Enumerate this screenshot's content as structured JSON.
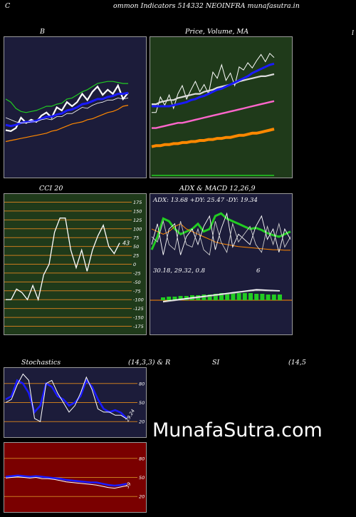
{
  "page": {
    "header": "ommon Indicators 514332 NEOINFRA munafasutra.in",
    "edge_left": "C",
    "edge_right": "l",
    "watermark": "MunafaSutra.com"
  },
  "colors": {
    "navy_bg": "#1c1c3a",
    "green_bg": "#1f3a1a",
    "red_bg": "#7a0000",
    "grid_orange": "#c87a1e",
    "blue_line": "#1a1aff",
    "green_line": "#22cc22",
    "orange_line": "#ff8800"
  },
  "chart_data": [
    {
      "type": "line",
      "title": "B",
      "series": [
        {
          "values": [
            1.3,
            1.2,
            1.5,
            2.5,
            2.0,
            2.3,
            2.1,
            2.7,
            3.0,
            2.5,
            3.5,
            3.2,
            4.0,
            3.6,
            4.0,
            4.8,
            4.2,
            5.0,
            5.5,
            4.7,
            5.2,
            4.8,
            5.6,
            4.3,
            4.9
          ]
        },
        {
          "values": [
            1.8,
            1.7,
            1.8,
            2.0,
            2.1,
            2.1,
            2.2,
            2.4,
            2.6,
            2.6,
            2.8,
            2.9,
            3.2,
            3.3,
            3.5,
            3.8,
            3.9,
            4.1,
            4.3,
            4.3,
            4.5,
            4.6,
            4.8,
            4.8,
            4.9
          ]
        },
        {
          "values": [
            2.5,
            2.3,
            2.1,
            2.0,
            2.0,
            2.1,
            2.1,
            2.3,
            2.4,
            2.3,
            2.6,
            2.6,
            2.9,
            2.9,
            3.2,
            3.5,
            3.4,
            3.7,
            3.9,
            4.0,
            4.2,
            4.2,
            4.4,
            4.3,
            4.4
          ]
        },
        {
          "values": [
            4.3,
            4.0,
            3.4,
            3.1,
            3.0,
            3.1,
            3.2,
            3.4,
            3.6,
            3.6,
            3.8,
            3.9,
            4.3,
            4.4,
            4.7,
            5.0,
            5.2,
            5.5,
            5.8,
            5.9,
            6.0,
            6.0,
            5.9,
            5.8,
            5.8
          ]
        },
        {
          "values": [
            0.2,
            0.3,
            0.4,
            0.5,
            0.6,
            0.7,
            0.8,
            0.9,
            1.0,
            1.2,
            1.3,
            1.5,
            1.7,
            1.9,
            2.0,
            2.1,
            2.3,
            2.4,
            2.6,
            2.8,
            3.0,
            3.1,
            3.3,
            3.6,
            3.7
          ]
        }
      ],
      "ylim": [
        -3,
        10
      ]
    },
    {
      "type": "line",
      "title": "Price, Volume, MA",
      "series": [
        {
          "values": [
            3.0,
            3.0,
            4.5,
            3.7,
            4.7,
            3.4,
            4.8,
            5.6,
            4.3,
            5.2,
            6.0,
            5.0,
            5.7,
            4.8,
            6.9,
            6.3,
            7.6,
            6.1,
            6.8,
            5.6,
            7.4,
            7.1,
            7.8,
            7.3,
            8.0,
            8.6,
            7.9,
            8.7,
            8.3
          ]
        },
        {
          "values": [
            3.8,
            3.8,
            4.0,
            4.1,
            4.2,
            4.2,
            4.4,
            4.5,
            4.6,
            4.7,
            4.8,
            4.8,
            5.0,
            5.1,
            5.2,
            5.4,
            5.5,
            5.6,
            5.7,
            5.8,
            6.0,
            6.1,
            6.2,
            6.3,
            6.4,
            6.5,
            6.5,
            6.6,
            6.7
          ]
        },
        {
          "values": [
            3.6,
            3.6,
            3.6,
            3.6,
            3.6,
            3.7,
            3.8,
            3.9,
            4.0,
            4.2,
            4.3,
            4.5,
            4.6,
            4.8,
            5.0,
            5.2,
            5.3,
            5.5,
            5.7,
            5.9,
            6.1,
            6.3,
            6.5,
            6.8,
            7.0,
            7.2,
            7.4,
            7.6,
            7.7
          ]
        },
        {
          "values": [
            1.5,
            1.5,
            1.6,
            1.7,
            1.8,
            1.9,
            2.0,
            2.0,
            2.1,
            2.2,
            2.3,
            2.4,
            2.5,
            2.6,
            2.7,
            2.8,
            2.9,
            3.0,
            3.1,
            3.2,
            3.3,
            3.4,
            3.5,
            3.6,
            3.7,
            3.8,
            3.9,
            4.0,
            4.1
          ]
        },
        {
          "values": [
            -0.3,
            -0.2,
            -0.2,
            -0.1,
            -0.1,
            0.0,
            0.0,
            0.1,
            0.1,
            0.2,
            0.2,
            0.3,
            0.3,
            0.4,
            0.4,
            0.5,
            0.5,
            0.6,
            0.6,
            0.7,
            0.8,
            0.8,
            0.9,
            1.0,
            1.0,
            1.1,
            1.2,
            1.3,
            1.4
          ]
        }
      ],
      "ylim": [
        -3,
        10
      ]
    },
    {
      "type": "line",
      "title": "CCI 20",
      "y_ticks": [
        175,
        150,
        125,
        100,
        75,
        50,
        25,
        0,
        -25,
        -50,
        -75,
        -100,
        -125,
        -150,
        -175
      ],
      "series": [
        {
          "values": [
            -100,
            -100,
            -70,
            -80,
            -100,
            -60,
            -100,
            -30,
            0,
            90,
            130,
            130,
            40,
            -10,
            40,
            -20,
            40,
            80,
            110,
            50,
            30,
            60
          ]
        }
      ],
      "last_label": "43",
      "ylim": [
        -190,
        190
      ]
    },
    {
      "type": "line",
      "title": "ADX & MACD 12,26,9",
      "adx_label": "ADX: 13.68  +DY: 25.47 -DY: 19.34",
      "macd_label": "30.18,  29.32,  0.8",
      "macd_extra": "6",
      "series": [
        {
          "values": [
            30,
            55,
            90,
            85,
            70,
            60,
            65,
            70,
            80,
            65,
            70,
            95,
            100,
            90,
            85,
            80,
            75,
            70,
            72,
            68,
            62,
            58,
            55,
            60,
            65
          ]
        },
        {
          "values": [
            70,
            65,
            60,
            65,
            75,
            80,
            70,
            65,
            60,
            55,
            50,
            45,
            42,
            40,
            38,
            36,
            35,
            34,
            33,
            32,
            31,
            30,
            30,
            29,
            29
          ]
        },
        {
          "values": [
            40,
            80,
            20,
            70,
            80,
            20,
            55,
            70,
            40,
            75,
            95,
            30,
            70,
            100,
            35,
            60,
            50,
            40,
            75,
            95,
            50,
            70,
            25,
            70,
            50
          ]
        },
        {
          "values": [
            55,
            45,
            85,
            40,
            30,
            85,
            40,
            35,
            70,
            30,
            20,
            85,
            45,
            25,
            80,
            45,
            60,
            75,
            40,
            25,
            75,
            40,
            80,
            35,
            55
          ]
        }
      ],
      "macd_series": [
        {
          "values": [
            2.0,
            2.5,
            3.0,
            3.5,
            4.0,
            4.5,
            5.0,
            5.5,
            6.0,
            6.5,
            7.0,
            7.5,
            8.0,
            8.5,
            9.0,
            9.5,
            10.0,
            9.8,
            9.6,
            9.4,
            9.2
          ]
        },
        {
          "values": [
            1.5,
            2.0,
            2.5,
            3.0,
            3.5,
            4.0,
            4.5,
            5.0,
            5.5,
            6.0,
            6.5,
            7.0,
            7.5,
            8.0,
            8.5,
            9.0,
            9.3,
            9.2,
            9.1,
            9.0,
            8.9
          ]
        }
      ],
      "macd_hist": [
        0.4,
        0.5,
        0.5,
        0.6,
        0.6,
        0.7,
        0.7,
        0.8,
        0.8,
        0.9,
        1.0,
        1.0,
        1.0,
        1.0,
        1.0,
        1.0,
        0.9,
        0.9,
        0.8,
        0.8,
        0.8
      ]
    },
    {
      "type": "line",
      "title": "Stochastics",
      "title_params": "(14,3,3) & R",
      "y_ticks": [
        80,
        50,
        20
      ],
      "series": [
        {
          "values": [
            55,
            60,
            85,
            80,
            65,
            35,
            45,
            80,
            75,
            60,
            55,
            45,
            50,
            60,
            85,
            75,
            55,
            40,
            35,
            38,
            34,
            25
          ]
        },
        {
          "values": [
            50,
            55,
            78,
            95,
            85,
            25,
            20,
            80,
            85,
            65,
            50,
            35,
            45,
            65,
            90,
            70,
            40,
            35,
            35,
            30,
            30,
            24
          ]
        }
      ],
      "last_label": "29.24",
      "ylim": [
        0,
        100
      ]
    },
    {
      "type": "line",
      "title": "SI",
      "title_params": "(14,5",
      "y_ticks": [
        80,
        50,
        20
      ],
      "series": [
        {
          "values": [
            51,
            52,
            53,
            52,
            51,
            52,
            51,
            50,
            49,
            48,
            46,
            45,
            44,
            43,
            42,
            42,
            40,
            38,
            37,
            38,
            40
          ]
        },
        {
          "values": [
            49,
            50,
            51,
            50,
            49,
            50,
            48,
            48,
            47,
            45,
            43,
            42,
            41,
            40,
            39,
            38,
            36,
            34,
            33,
            35,
            37
          ]
        }
      ],
      "last_label": "39",
      "ylim": [
        0,
        100
      ]
    }
  ]
}
